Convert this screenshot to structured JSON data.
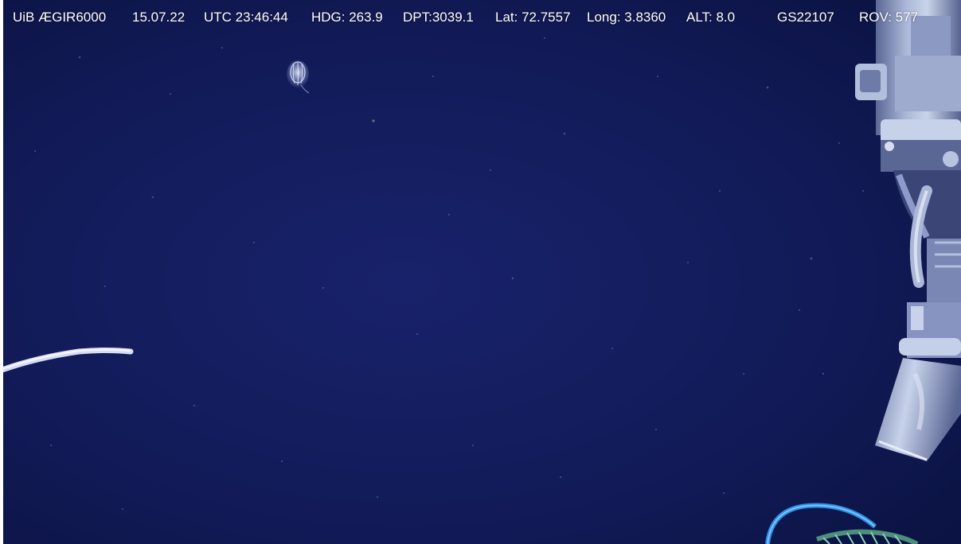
{
  "overlay": {
    "vehicle": "UiB ÆGIR6000",
    "date": "15.07.22",
    "time": "UTC 23:46:44",
    "heading": "HDG: 263.9",
    "depth": "DPT:3039.1",
    "lat": "Lat: 72.7557",
    "long": "Long: 3.8360",
    "alt": "ALT:  8.0",
    "station": "GS22107",
    "rov": "ROV: 577"
  },
  "colors": {
    "water_deep": "#0c1446",
    "water_mid": "#141d5a",
    "metal_light": "#b9c6de",
    "metal_dark": "#4a5682",
    "hose_blue": "#3aa7ff",
    "rope_green": "#5fa58e"
  }
}
